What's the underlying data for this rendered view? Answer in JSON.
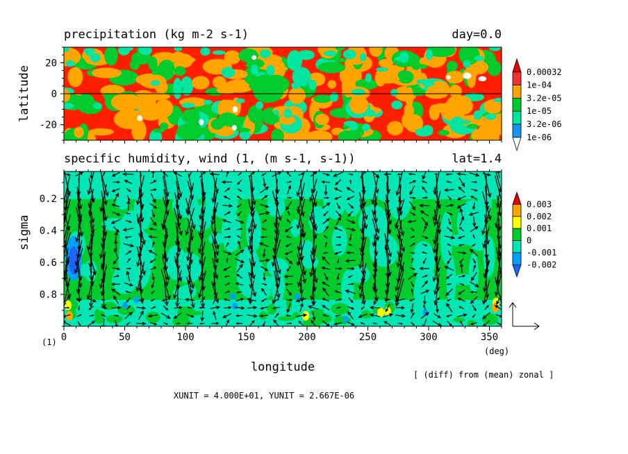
{
  "chart_data": [
    {
      "type": "heatmap",
      "title": "precipitation (kg m-2 s-1)",
      "title_right": "day=0.0",
      "ylabel": "latitude",
      "ylim": [
        -30,
        30
      ],
      "xlim": [
        0,
        360
      ],
      "yticks": [
        {
          "v": 20,
          "label": "20"
        },
        {
          "v": 0,
          "label": "0"
        },
        {
          "v": -20,
          "label": "-20"
        }
      ],
      "reference_line": 0,
      "colorbar": {
        "levels": [
          "1e-06",
          "3.2e-06",
          "1e-05",
          "3.2e-05",
          "1e-04",
          "0.00032"
        ],
        "colors": [
          "#ffffff",
          "#1496f5",
          "#00e6a0",
          "#00cd2d",
          "#ffa500",
          "#f03232",
          "#e60000"
        ]
      },
      "field_scale": "log",
      "dominant_colors": [
        "#ff1e00",
        "#ffa500",
        "#00cd2d",
        "#00e6a0"
      ]
    },
    {
      "type": "heatmap",
      "title": "specific humidity, wind (1, (m s-1, s-1))",
      "title_right": "lat=1.4",
      "ylabel": "sigma",
      "xlabel": "longitude",
      "ylim": [
        1.0,
        0.03
      ],
      "xlim": [
        0,
        360
      ],
      "x_unit_label": "(deg)",
      "y_unit_label": "(1)",
      "xticks": [
        {
          "v": 0,
          "label": "0"
        },
        {
          "v": 50,
          "label": "50"
        },
        {
          "v": 100,
          "label": "100"
        },
        {
          "v": 150,
          "label": "150"
        },
        {
          "v": 200,
          "label": "200"
        },
        {
          "v": 250,
          "label": "250"
        },
        {
          "v": 300,
          "label": "300"
        },
        {
          "v": 350,
          "label": "350"
        }
      ],
      "yticks": [
        {
          "v": 0.2,
          "label": "0.2"
        },
        {
          "v": 0.4,
          "label": "0.4"
        },
        {
          "v": 0.6,
          "label": "0.6"
        },
        {
          "v": 0.8,
          "label": "0.8"
        }
      ],
      "colorbar": {
        "levels": [
          "-0.002",
          "-0.001",
          "0",
          "0.001",
          "0.002",
          "0.003"
        ],
        "colors": [
          "#1e64ff",
          "#00a0ff",
          "#00e6b4",
          "#00cd2d",
          "#ffff00",
          "#ffa500",
          "#e60000"
        ]
      },
      "vectors": {
        "x_levels": 36,
        "y_levels": 20,
        "reference": "XUNIT = 4.000E+01, YUNIT = 2.667E-06"
      },
      "note": "[ (diff) from (mean) zonal ]"
    }
  ]
}
